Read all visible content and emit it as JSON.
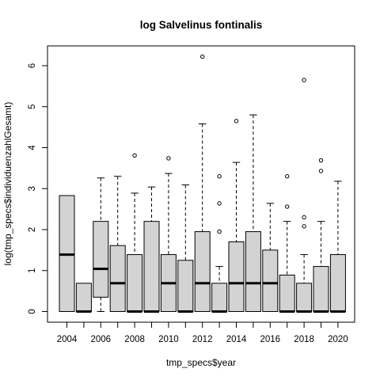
{
  "chart_data": {
    "type": "box",
    "title": "log Salvelinus fontinalis",
    "xlabel": "tmp_specs$year",
    "ylabel": "log(tmp_specs$individuenzahlGesamt)",
    "ylim": [
      0,
      6.5
    ],
    "yticks": [
      0,
      1,
      2,
      3,
      4,
      5,
      6
    ],
    "xticks_shown": [
      "2004",
      "2006",
      "2008",
      "2010",
      "2012",
      "2014",
      "2016",
      "2018",
      "2020"
    ],
    "grid": false,
    "legend": "none",
    "box_fill": "#d3d3d3",
    "boxes": [
      {
        "year": "2004",
        "whisker_low": 0,
        "q1": 0,
        "median": 1.39,
        "q3": 2.83,
        "whisker_high": 2.83,
        "outliers": []
      },
      {
        "year": "2005",
        "whisker_low": 0,
        "q1": 0,
        "median": 0,
        "q3": 0.69,
        "whisker_high": 0.69,
        "outliers": []
      },
      {
        "year": "2006",
        "whisker_low": 0,
        "q1": 0.35,
        "median": 1.04,
        "q3": 2.2,
        "whisker_high": 3.26,
        "outliers": []
      },
      {
        "year": "2007",
        "whisker_low": 0,
        "q1": 0,
        "median": 0.69,
        "q3": 1.61,
        "whisker_high": 3.3,
        "outliers": []
      },
      {
        "year": "2008",
        "whisker_low": 0,
        "q1": 0,
        "median": 0,
        "q3": 1.39,
        "whisker_high": 2.89,
        "outliers": [
          3.81
        ]
      },
      {
        "year": "2009",
        "whisker_low": 0,
        "q1": 0,
        "median": 0,
        "q3": 2.2,
        "whisker_high": 3.04,
        "outliers": []
      },
      {
        "year": "2010",
        "whisker_low": 0,
        "q1": 0,
        "median": 0.69,
        "q3": 1.39,
        "whisker_high": 3.37,
        "outliers": [
          3.74
        ]
      },
      {
        "year": "2011",
        "whisker_low": 0,
        "q1": 0,
        "median": 0,
        "q3": 1.25,
        "whisker_high": 3.09,
        "outliers": []
      },
      {
        "year": "2012",
        "whisker_low": 0,
        "q1": 0,
        "median": 0.69,
        "q3": 1.95,
        "whisker_high": 4.58,
        "outliers": [
          6.22
        ]
      },
      {
        "year": "2013",
        "whisker_low": 0,
        "q1": 0,
        "median": 0,
        "q3": 0.69,
        "whisker_high": 1.1,
        "outliers": [
          1.95,
          2.64,
          3.3
        ]
      },
      {
        "year": "2014",
        "whisker_low": 0,
        "q1": 0,
        "median": 0.69,
        "q3": 1.7,
        "whisker_high": 3.64,
        "outliers": [
          4.65
        ]
      },
      {
        "year": "2015",
        "whisker_low": 0,
        "q1": 0,
        "median": 0.69,
        "q3": 1.95,
        "whisker_high": 4.8,
        "outliers": []
      },
      {
        "year": "2016",
        "whisker_low": 0,
        "q1": 0,
        "median": 0.69,
        "q3": 1.5,
        "whisker_high": 2.64,
        "outliers": []
      },
      {
        "year": "2017",
        "whisker_low": 0,
        "q1": 0,
        "median": 0,
        "q3": 0.89,
        "whisker_high": 2.2,
        "outliers": [
          2.56,
          3.3
        ]
      },
      {
        "year": "2018",
        "whisker_low": 0,
        "q1": 0,
        "median": 0,
        "q3": 0.69,
        "whisker_high": 1.39,
        "outliers": [
          2.08,
          2.3,
          5.65
        ]
      },
      {
        "year": "2019",
        "whisker_low": 0,
        "q1": 0,
        "median": 0,
        "q3": 1.1,
        "whisker_high": 2.2,
        "outliers": [
          3.43,
          3.69
        ]
      },
      {
        "year": "2020",
        "whisker_low": 0,
        "q1": 0,
        "median": 0,
        "q3": 1.39,
        "whisker_high": 3.18,
        "outliers": []
      }
    ]
  }
}
